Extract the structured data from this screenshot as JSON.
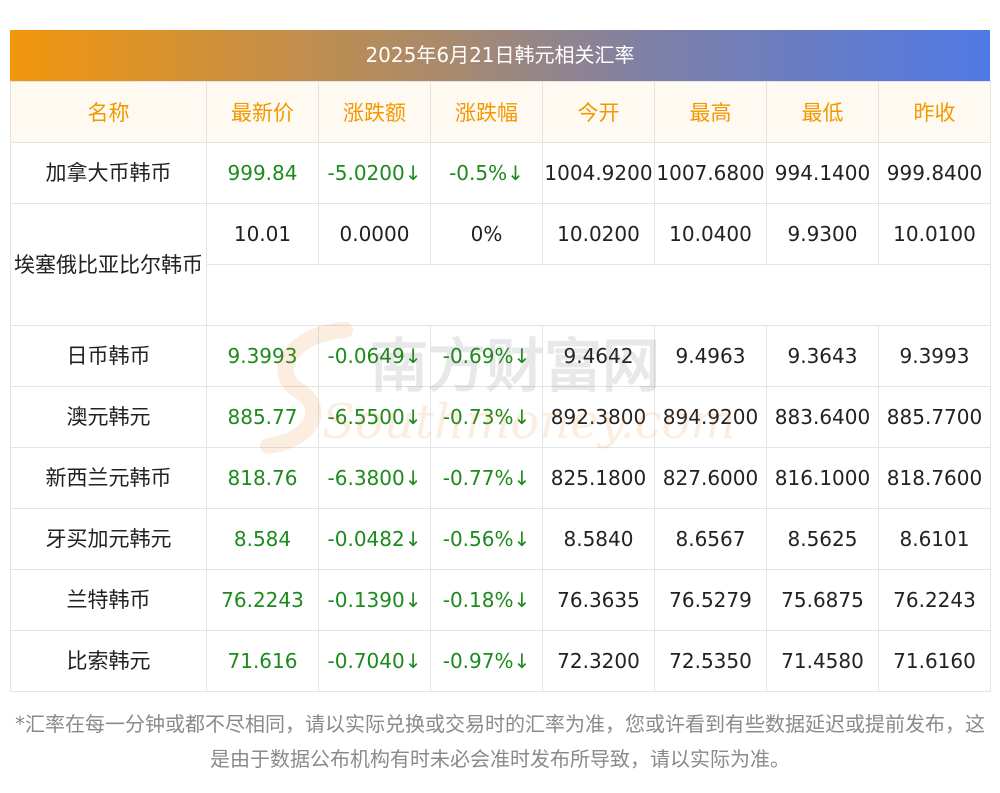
{
  "title": "2025年6月21日韩元相关汇率",
  "headers": [
    "名称",
    "最新价",
    "涨跌额",
    "涨跌幅",
    "今开",
    "最高",
    "最低",
    "昨收"
  ],
  "rows": [
    {
      "name": "加拿大币韩币",
      "latest": "999.84",
      "change": "-5.0200↓",
      "pct": "-0.5%↓",
      "open": "1004.9200",
      "high": "1007.6800",
      "low": "994.1400",
      "prev": "999.8400"
    },
    {
      "name": "埃塞俄比亚比尔韩币",
      "latest": "10.01",
      "change": "0.0000",
      "pct": "0%",
      "open": "10.0200",
      "high": "10.0400",
      "low": "9.9300",
      "prev": "10.0100"
    },
    {
      "name": "日币韩币",
      "latest": "9.3993",
      "change": "-0.0649↓",
      "pct": "-0.69%↓",
      "open": "9.4642",
      "high": "9.4963",
      "low": "9.3643",
      "prev": "9.3993"
    },
    {
      "name": "澳元韩元",
      "latest": "885.77",
      "change": "-6.5500↓",
      "pct": "-0.73%↓",
      "open": "892.3800",
      "high": "894.9200",
      "low": "883.6400",
      "prev": "885.7700"
    },
    {
      "name": "新西兰元韩币",
      "latest": "818.76",
      "change": "-6.3800↓",
      "pct": "-0.77%↓",
      "open": "825.1800",
      "high": "827.6000",
      "low": "816.1000",
      "prev": "818.7600"
    },
    {
      "name": "牙买加元韩元",
      "latest": "8.584",
      "change": "-0.0482↓",
      "pct": "-0.56%↓",
      "open": "8.5840",
      "high": "8.6567",
      "low": "8.5625",
      "prev": "8.6101"
    },
    {
      "name": "兰特韩币",
      "latest": "76.2243",
      "change": "-0.1390↓",
      "pct": "-0.18%↓",
      "open": "76.3635",
      "high": "76.5279",
      "low": "75.6875",
      "prev": "76.2243"
    },
    {
      "name": "比索韩元",
      "latest": "71.616",
      "change": "-0.7040↓",
      "pct": "-0.97%↓",
      "open": "72.3200",
      "high": "72.5350",
      "low": "71.4580",
      "prev": "71.6160"
    }
  ],
  "watermark": {
    "cn": "南方财富网",
    "en": "Southmoney.com"
  },
  "footnote": "*汇率在每一分钟或都不尽相同，请以实际兑换或交易时的汇率为准，您或许看到有些数据延迟或提前发布，这是由于数据公布机构有时未必会准时发布所导致，请以实际为准。",
  "colors": {
    "accent_orange": "#f39800",
    "positive_green": "#1d8a1d",
    "gradient_start": "#f2960c",
    "gradient_end": "#4f79e4"
  }
}
